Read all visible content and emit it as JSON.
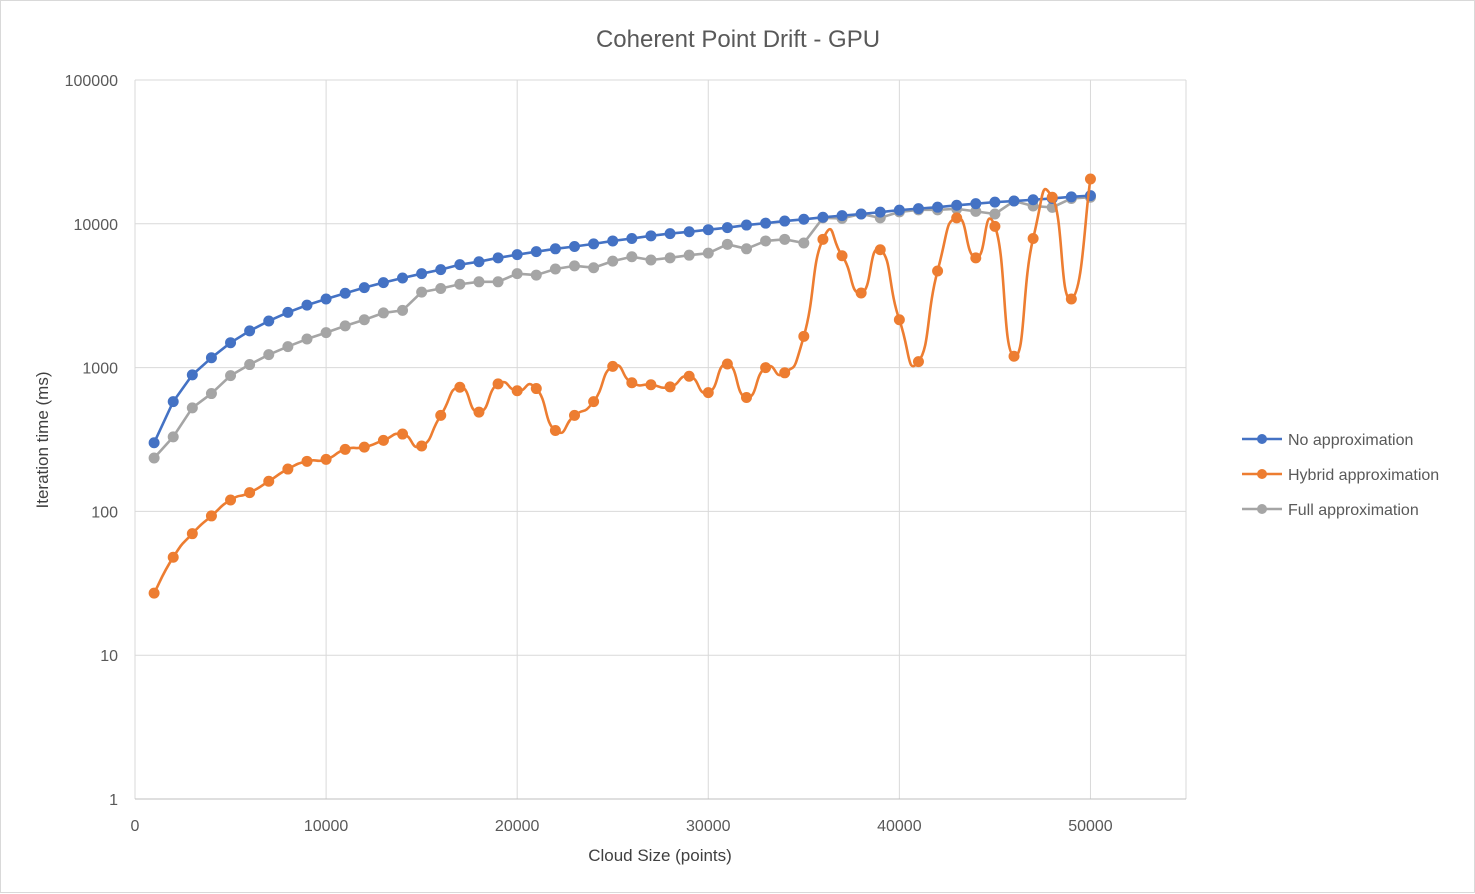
{
  "chart_data": {
    "type": "line",
    "title": "Coherent Point Drift - GPU",
    "xlabel": "Cloud Size (points)",
    "ylabel": "Iteration time (ms)",
    "xlim": [
      0,
      55000
    ],
    "ylim": [
      1,
      100000
    ],
    "yscale": "log",
    "grid": true,
    "legend_position": "right",
    "x_ticks": [
      0,
      10000,
      20000,
      30000,
      40000,
      50000
    ],
    "y_ticks": [
      1,
      10,
      100,
      1000,
      10000,
      100000
    ],
    "x_tick_labels": [
      "0",
      "10000",
      "20000",
      "30000",
      "40000",
      "50000"
    ],
    "y_tick_labels": [
      "1",
      "10",
      "100",
      "1000",
      "10000",
      "100000"
    ],
    "x": [
      1000,
      2000,
      3000,
      4000,
      5000,
      6000,
      7000,
      8000,
      9000,
      10000,
      11000,
      12000,
      13000,
      14000,
      15000,
      16000,
      17000,
      18000,
      19000,
      20000,
      21000,
      22000,
      23000,
      24000,
      25000,
      26000,
      27000,
      28000,
      29000,
      30000,
      31000,
      32000,
      33000,
      34000,
      35000,
      36000,
      37000,
      38000,
      39000,
      40000,
      41000,
      42000,
      43000,
      44000,
      45000,
      46000,
      47000,
      48000,
      49000,
      50000
    ],
    "series": [
      {
        "name": "No approximation",
        "color": "#4472c4",
        "smooth": false,
        "values": [
          300,
          580,
          890,
          1170,
          1490,
          1800,
          2110,
          2420,
          2720,
          3000,
          3290,
          3600,
          3900,
          4200,
          4500,
          4800,
          5200,
          5450,
          5800,
          6100,
          6400,
          6700,
          6950,
          7250,
          7600,
          7900,
          8250,
          8550,
          8800,
          9100,
          9400,
          9800,
          10100,
          10450,
          10750,
          11100,
          11400,
          11700,
          12050,
          12450,
          12750,
          13050,
          13450,
          13800,
          14150,
          14400,
          14700,
          15000,
          15400,
          15700
        ]
      },
      {
        "name": "Hybrid approximation",
        "color": "#ed7d31",
        "smooth": true,
        "values": [
          27,
          48,
          70,
          93,
          120,
          135,
          162,
          197,
          223,
          230,
          270,
          280,
          312,
          345,
          285,
          465,
          730,
          490,
          770,
          690,
          715,
          365,
          465,
          580,
          1020,
          785,
          760,
          735,
          870,
          670,
          1060,
          620,
          1000,
          920,
          1650,
          7800,
          6000,
          3300,
          6600,
          2150,
          1100,
          4700,
          11000,
          5800,
          9600,
          1200,
          7900,
          15300,
          3000,
          20500
        ]
      },
      {
        "name": "Full approximation",
        "color": "#a5a5a5",
        "smooth": false,
        "values": [
          235,
          330,
          525,
          660,
          880,
          1050,
          1230,
          1400,
          1580,
          1750,
          1950,
          2150,
          2400,
          2500,
          3350,
          3550,
          3800,
          3950,
          3950,
          4500,
          4400,
          4850,
          5100,
          4950,
          5500,
          5900,
          5600,
          5800,
          6050,
          6250,
          7200,
          6700,
          7600,
          7800,
          7350,
          11000,
          10900,
          11700,
          11000,
          12100,
          12500,
          12500,
          12700,
          12200,
          11700,
          14400,
          13300,
          13000,
          15000,
          15300
        ]
      }
    ]
  }
}
